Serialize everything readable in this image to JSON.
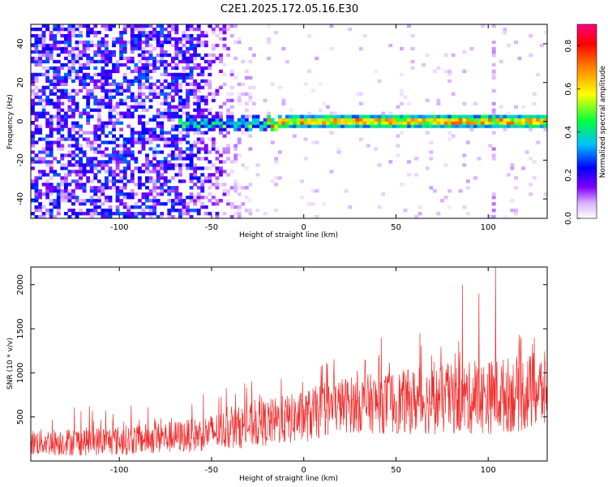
{
  "title": "C2E1.2025.172.05.16.E30",
  "chart_data": [
    {
      "type": "heatmap",
      "xlabel": "Height of straight line (km)",
      "ylabel": "Frequency (Hz)",
      "xlim": [
        -148,
        132
      ],
      "ylim": [
        -50,
        50
      ],
      "x_ticks": [
        -100,
        -50,
        0,
        50,
        100
      ],
      "y_ticks": [
        -40,
        -20,
        0,
        20,
        40
      ],
      "colorbar": {
        "label": "Normalized spectral amplitude",
        "range": [
          0,
          0.9
        ],
        "ticks": [
          0,
          0.2,
          0.4,
          0.6,
          0.8
        ],
        "colors": [
          "#ffffff",
          "#8000ff",
          "#0000ff",
          "#00c0ff",
          "#00ff40",
          "#ffff00",
          "#ff8000",
          "#ff0000",
          "#ff0080"
        ]
      },
      "features": {
        "noise_region_x": [
          -148,
          -25
        ],
        "noise_strength": "high (0.1-0.3) below -60 km, decaying to sparse near -25 km",
        "signal_band_start_x": -68,
        "signal_band_center_hz": 0,
        "signal_band_halfwidth_hz": 3,
        "signal_peak_amplitude": 0.9
      }
    },
    {
      "type": "line",
      "xlabel": "Height of straight line (km)",
      "ylabel": "SNR (10 * v/v)",
      "xlim": [
        -148,
        132
      ],
      "ylim": [
        0,
        2200
      ],
      "x_ticks": [
        -100,
        -50,
        0,
        50,
        100
      ],
      "y_ticks": [
        500,
        1000,
        1500,
        2000
      ],
      "series": [
        {
          "color": "#f03030",
          "envelope": [
            {
              "x": -148,
              "low": 60,
              "high": 360
            },
            {
              "x": -100,
              "low": 60,
              "high": 400
            },
            {
              "x": -60,
              "low": 100,
              "high": 480
            },
            {
              "x": -30,
              "low": 150,
              "high": 650
            },
            {
              "x": 0,
              "low": 200,
              "high": 800
            },
            {
              "x": 20,
              "low": 320,
              "high": 950
            },
            {
              "x": 60,
              "low": 300,
              "high": 1050
            },
            {
              "x": 100,
              "low": 300,
              "high": 1150
            },
            {
              "x": 132,
              "low": 350,
              "high": 1250
            }
          ],
          "spikes": [
            {
              "x": 86,
              "y": 2000
            },
            {
              "x": 95,
              "y": 1900
            },
            {
              "x": 104,
              "y": 2200
            },
            {
              "x": 63,
              "y": 1450
            },
            {
              "x": 42,
              "y": 1400
            },
            {
              "x": 125,
              "y": 1400
            }
          ]
        }
      ]
    }
  ]
}
